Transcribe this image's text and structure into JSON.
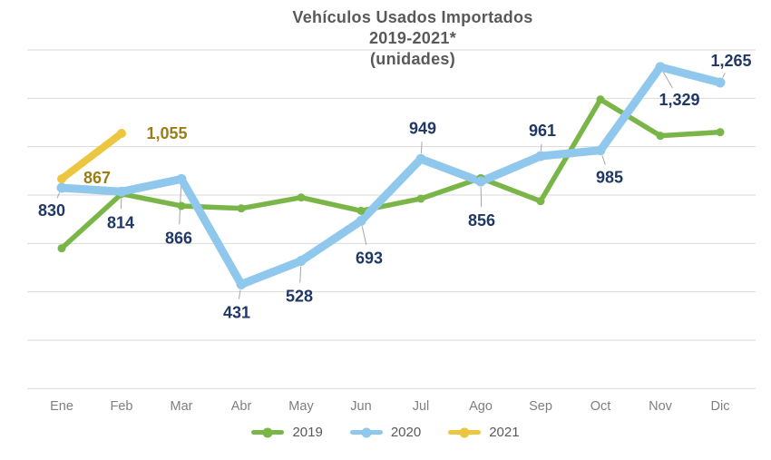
{
  "title": {
    "line1": "Vehículos Usados Importados",
    "line2": "2019-2021*",
    "line3": "(unidades)"
  },
  "chart_data": {
    "type": "line",
    "title": "Vehículos Usados Importados 2019-2021* (unidades)",
    "categories": [
      "Ene",
      "Feb",
      "Mar",
      "Abr",
      "May",
      "Jun",
      "Jul",
      "Ago",
      "Sep",
      "Oct",
      "Nov",
      "Dic"
    ],
    "series": [
      {
        "name": "2019",
        "color": "#79B647",
        "values": [
          580,
          805,
          755,
          745,
          790,
          735,
          785,
          870,
          775,
          1195,
          1045,
          1060
        ],
        "line_width": 5.5,
        "marker_radius": 4.5,
        "labels_shown": false
      },
      {
        "name": "2020",
        "color": "#8FC8EC",
        "label_color": "#1F3864",
        "values": [
          830,
          814,
          866,
          431,
          528,
          693,
          949,
          856,
          961,
          985,
          1329,
          1265
        ],
        "data_labels": [
          "830",
          "814",
          "866",
          "431",
          "528",
          "693",
          "949",
          "856",
          "961",
          "985",
          "1,329",
          "1,265"
        ],
        "line_width": 9,
        "marker_radius": 5.5
      },
      {
        "name": "2021",
        "color": "#ECC63F",
        "label_color": "#9A7D15",
        "values": [
          867,
          1055
        ],
        "data_labels": [
          "867",
          "1,055"
        ],
        "line_width": 8,
        "marker_radius": 5
      }
    ],
    "ylim": [
      0,
      1400
    ],
    "gridline_step": 200,
    "grid": true,
    "legend_position": "bottom",
    "xlabel": "",
    "ylabel": "",
    "colors": {
      "gridline": "#D9D9D9",
      "leader_line": "#A6A6A6",
      "axis_text": "#7F7F7F",
      "title_text": "#595959",
      "legend_text": "#595959"
    }
  },
  "legend": {
    "items": [
      "2019",
      "2020",
      "2021"
    ]
  }
}
